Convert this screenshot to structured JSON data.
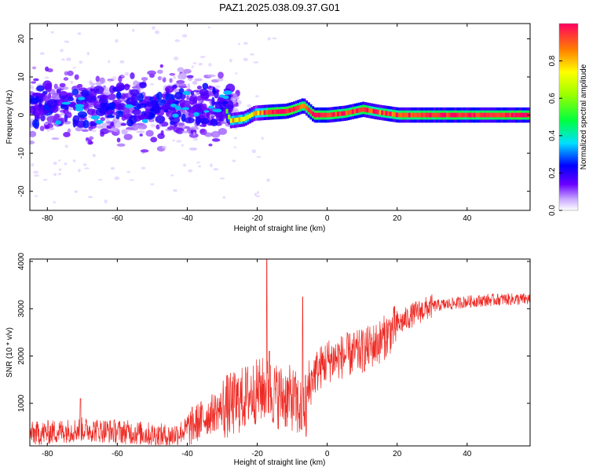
{
  "chart_data": [
    {
      "type": "heatmap",
      "title": "PAZ1.2025.038.09.37.G01",
      "xlabel": "Height of straight line (km)",
      "ylabel": "Frequency (Hz)",
      "xlim": [
        -85,
        58
      ],
      "ylim": [
        -25,
        24
      ],
      "xticks": [
        -80,
        -60,
        -40,
        -20,
        0,
        20,
        40
      ],
      "yticks": [
        -20,
        -10,
        0,
        10,
        20
      ],
      "colorbar": {
        "label": "Normalized spectral amplitude",
        "range": [
          0,
          1
        ],
        "ticks": [
          0.0,
          0.2,
          0.4,
          0.6,
          0.8
        ]
      },
      "ridge": [
        {
          "x": -85,
          "f": 2.5,
          "a": 0.3
        },
        {
          "x": -75,
          "f": 3.0,
          "a": 0.3
        },
        {
          "x": -65,
          "f": 2.5,
          "a": 0.32
        },
        {
          "x": -55,
          "f": 3.0,
          "a": 0.3
        },
        {
          "x": -47,
          "f": 3.5,
          "a": 0.3
        },
        {
          "x": -40,
          "f": -2.5,
          "a": 0.3
        },
        {
          "x": -35,
          "f": 0.5,
          "a": 0.3
        },
        {
          "x": -30,
          "f": 3.5,
          "a": 0.3
        },
        {
          "x": -28,
          "f": -1.5,
          "a": 0.55
        },
        {
          "x": -24,
          "f": -1.0,
          "a": 0.55
        },
        {
          "x": -21,
          "f": 0.5,
          "a": 0.5
        },
        {
          "x": -16,
          "f": 0.8,
          "a": 0.85
        },
        {
          "x": -12,
          "f": 1.0,
          "a": 0.8
        },
        {
          "x": -10,
          "f": 1.5,
          "a": 0.85
        },
        {
          "x": -7,
          "f": 2.5,
          "a": 0.7
        },
        {
          "x": -4,
          "f": 0.0,
          "a": 0.9
        },
        {
          "x": 0,
          "f": 0.0,
          "a": 0.8
        },
        {
          "x": 5,
          "f": 0.5,
          "a": 0.75
        },
        {
          "x": 10,
          "f": 1.5,
          "a": 0.8
        },
        {
          "x": 14,
          "f": 0.8,
          "a": 0.7
        },
        {
          "x": 20,
          "f": 0.0,
          "a": 0.75
        },
        {
          "x": 30,
          "f": 0.0,
          "a": 0.8
        },
        {
          "x": 40,
          "f": 0.0,
          "a": 0.8
        },
        {
          "x": 50,
          "f": 0.0,
          "a": 0.8
        },
        {
          "x": 58,
          "f": 0.0,
          "a": 0.85
        }
      ]
    },
    {
      "type": "line",
      "xlabel": "Height of straight line (km)",
      "ylabel": "SNR (10 * v/v)",
      "xlim": [
        -85,
        58
      ],
      "ylim": [
        100,
        4050
      ],
      "xticks": [
        -80,
        -60,
        -40,
        -20,
        0,
        20,
        40
      ],
      "yticks": [
        1000,
        2000,
        3000,
        4000
      ],
      "color": "#ee2a24",
      "trend": [
        {
          "x": -85,
          "y": 350
        },
        {
          "x": -70,
          "y": 450
        },
        {
          "x": -55,
          "y": 380
        },
        {
          "x": -45,
          "y": 300
        },
        {
          "x": -40,
          "y": 450
        },
        {
          "x": -35,
          "y": 700
        },
        {
          "x": -30,
          "y": 900
        },
        {
          "x": -26,
          "y": 1000
        },
        {
          "x": -22,
          "y": 1200
        },
        {
          "x": -18,
          "y": 1300
        },
        {
          "x": -14,
          "y": 1150
        },
        {
          "x": -10,
          "y": 1100
        },
        {
          "x": -7,
          "y": 800
        },
        {
          "x": -4,
          "y": 1600
        },
        {
          "x": 0,
          "y": 1900
        },
        {
          "x": 5,
          "y": 2000
        },
        {
          "x": 10,
          "y": 2100
        },
        {
          "x": 15,
          "y": 2300
        },
        {
          "x": 20,
          "y": 2650
        },
        {
          "x": 25,
          "y": 2900
        },
        {
          "x": 30,
          "y": 3050
        },
        {
          "x": 40,
          "y": 3150
        },
        {
          "x": 50,
          "y": 3200
        },
        {
          "x": 58,
          "y": 3200
        }
      ],
      "spikes": [
        {
          "x": -17.3,
          "y": 4050
        },
        {
          "x": -16.5,
          "y": 2100
        },
        {
          "x": -7.0,
          "y": 3250
        },
        {
          "x": -6.0,
          "y": 300
        },
        {
          "x": -70.5,
          "y": 1100
        }
      ]
    }
  ]
}
